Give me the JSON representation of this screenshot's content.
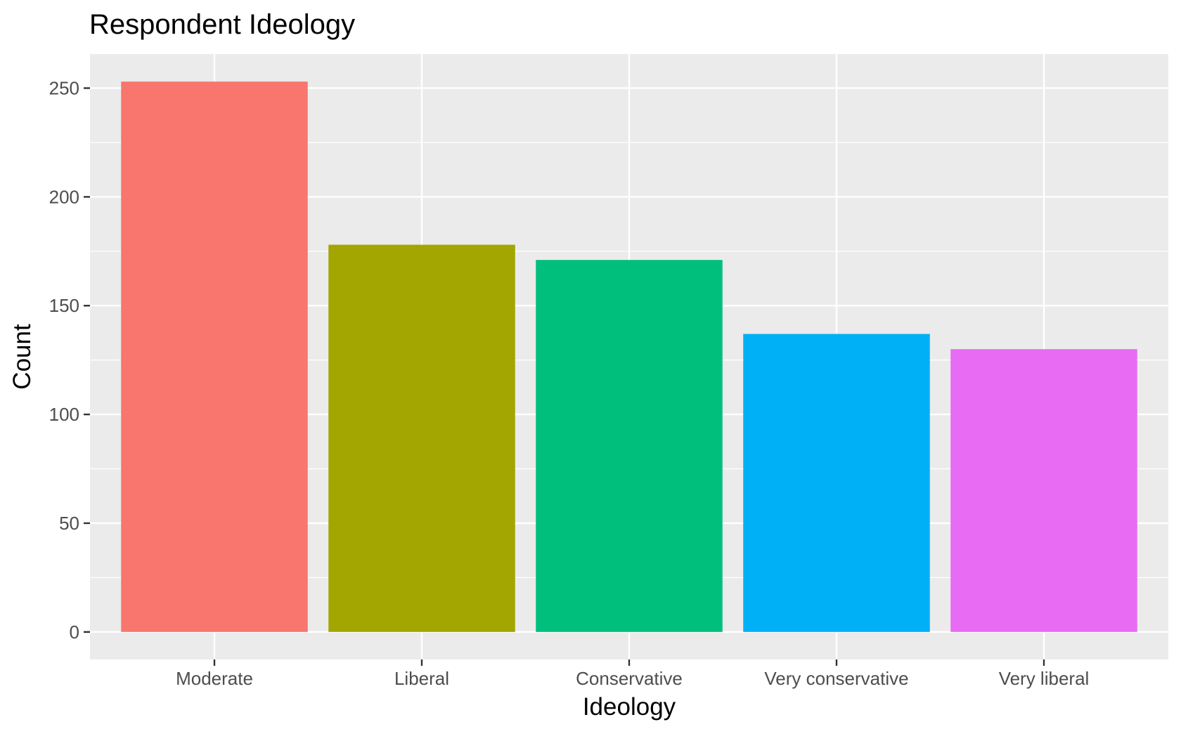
{
  "chart_data": {
    "type": "bar",
    "title": "Respondent Ideology",
    "xlabel": "Ideology",
    "ylabel": "Count",
    "categories": [
      "Moderate",
      "Liberal",
      "Conservative",
      "Very conservative",
      "Very liberal"
    ],
    "values": [
      253,
      178,
      171,
      137,
      130
    ],
    "colors": [
      "#F8766D",
      "#A3A500",
      "#00BF7D",
      "#00B0F6",
      "#E76BF3"
    ],
    "ylim": [
      -12.65,
      265.65
    ],
    "yticks": [
      0,
      50,
      100,
      150,
      200,
      250
    ],
    "grid": true,
    "legend": "none",
    "panel_background": "#EBEBEB",
    "grid_color": "#FFFFFF"
  }
}
